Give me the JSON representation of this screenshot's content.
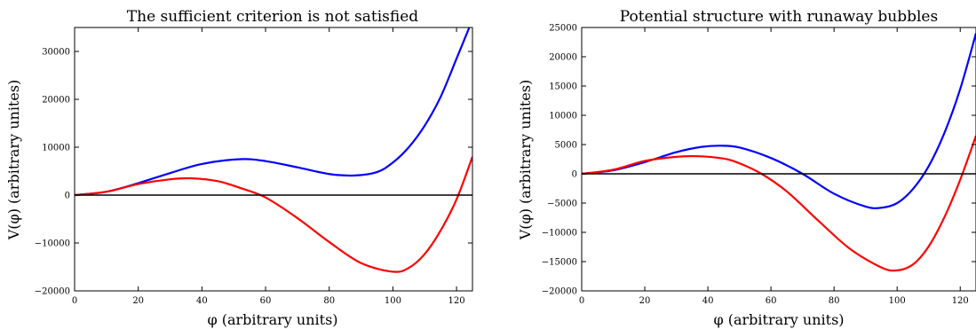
{
  "chart_data": [
    {
      "type": "line",
      "title": "The sufficient criterion is not satisfied",
      "xlabel": "φ (arbitrary units)",
      "ylabel": "V(φ) (arbitrary unites)",
      "xlim": [
        0,
        125
      ],
      "ylim": [
        -20000,
        35000
      ],
      "xticks": [
        0,
        20,
        40,
        60,
        80,
        100,
        120
      ],
      "yticks": [
        -20000,
        -10000,
        0,
        10000,
        20000,
        30000
      ],
      "ytick_labels": [
        "−20000",
        "−10000",
        "0",
        "10000",
        "20000",
        "30000"
      ],
      "grid": false,
      "series": [
        {
          "color": "#0000ff",
          "x": [
            0,
            10,
            20,
            30,
            40,
            52,
            60,
            70,
            80,
            88,
            95,
            100,
            105,
            110,
            115,
            120,
            124
          ],
          "y": [
            0,
            700,
            2500,
            4600,
            6500,
            7500,
            7100,
            5800,
            4400,
            4100,
            4800,
            6800,
            10000,
            14500,
            20500,
            28500,
            35000
          ]
        },
        {
          "color": "#ff0000",
          "x": [
            0,
            10,
            20,
            30,
            37,
            45,
            52,
            60,
            70,
            80,
            90,
            100,
            105,
            110,
            115,
            120,
            125
          ],
          "y": [
            0,
            700,
            2300,
            3300,
            3500,
            2900,
            1500,
            -500,
            -4800,
            -9800,
            -14200,
            -16000,
            -15200,
            -12300,
            -7400,
            -900,
            8000
          ]
        }
      ],
      "hline": {
        "y": 0,
        "color": "#000000"
      }
    },
    {
      "type": "line",
      "title": "Potential structure with runaway bubbles",
      "xlabel": "φ (arbitrary units)",
      "ylabel": "V(φ) (arbitrary unites)",
      "xlim": [
        0,
        125
      ],
      "ylim": [
        -20000,
        25000
      ],
      "xticks": [
        0,
        20,
        40,
        60,
        80,
        100,
        120
      ],
      "yticks": [
        -20000,
        -15000,
        -10000,
        -5000,
        0,
        5000,
        10000,
        15000,
        20000,
        25000
      ],
      "ytick_labels": [
        "−20000",
        "−15000",
        "−10000",
        "−5000",
        "0",
        "5000",
        "10000",
        "15000",
        "20000",
        "25000"
      ],
      "grid": false,
      "series": [
        {
          "color": "#0000ff",
          "x": [
            0,
            10,
            20,
            30,
            38,
            44,
            50,
            60,
            70,
            80,
            90,
            95,
            100,
            105,
            110,
            115,
            120,
            125
          ],
          "y": [
            0,
            600,
            2000,
            3700,
            4600,
            4800,
            4500,
            2700,
            0,
            -3400,
            -5600,
            -5800,
            -5000,
            -2600,
            1300,
            7000,
            14500,
            24000
          ]
        },
        {
          "color": "#ff0000",
          "x": [
            0,
            10,
            20,
            30,
            37,
            45,
            50,
            57,
            65,
            75,
            85,
            95,
            100,
            105,
            110,
            115,
            120,
            125
          ],
          "y": [
            0,
            700,
            2200,
            2900,
            3000,
            2600,
            1800,
            0,
            -3000,
            -8000,
            -12800,
            -16000,
            -16500,
            -15500,
            -12400,
            -7400,
            -1000,
            6500
          ]
        }
      ],
      "hline": {
        "y": 0,
        "color": "#000000"
      }
    }
  ]
}
